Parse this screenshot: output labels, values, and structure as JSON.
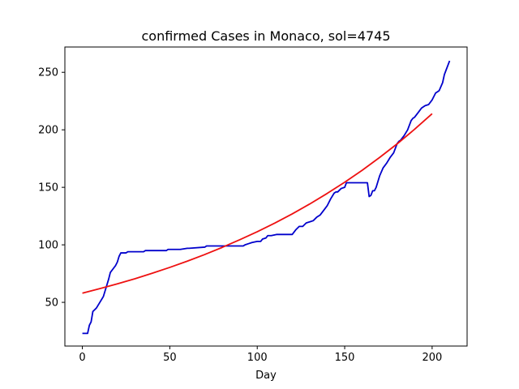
{
  "chart_data": {
    "type": "line",
    "title": "confirmed Cases in Monaco, sol=4745",
    "xlabel": "Day",
    "ylabel": "",
    "xlim": [
      -10,
      220
    ],
    "ylim": [
      12,
      272
    ],
    "xticks": [
      0,
      50,
      100,
      150,
      200
    ],
    "yticks": [
      50,
      100,
      150,
      200,
      250
    ],
    "grid": false,
    "series": [
      {
        "color": "#0000cc",
        "x": [
          0,
          3,
          4,
          5,
          6,
          8,
          10,
          12,
          13,
          14,
          15,
          16,
          18,
          19,
          20,
          21,
          22,
          25,
          26,
          35,
          36,
          48,
          49,
          55,
          56,
          60,
          61,
          70,
          71,
          80,
          92,
          93,
          95,
          97,
          100,
          102,
          103,
          105,
          106,
          108,
          111,
          112,
          116,
          120,
          122,
          124,
          126,
          128,
          130,
          132,
          134,
          136,
          138,
          140,
          142,
          144,
          145,
          146,
          148,
          150,
          151,
          152,
          153,
          155,
          157,
          160,
          163,
          164,
          165,
          166,
          167,
          168,
          169,
          170,
          172,
          174,
          176,
          177,
          178,
          180,
          181,
          182,
          184,
          186,
          188,
          189,
          190,
          192,
          194,
          196,
          198,
          200,
          202,
          203,
          204,
          206,
          207,
          208,
          210
        ],
        "y": [
          23,
          23,
          30,
          33,
          42,
          45,
          50,
          55,
          60,
          65,
          70,
          76,
          80,
          82,
          85,
          90,
          93,
          93,
          94,
          94,
          95,
          95,
          96,
          96,
          96,
          97,
          97,
          98,
          99,
          99,
          99,
          100,
          101,
          102,
          103,
          103,
          105,
          106,
          108,
          108,
          109,
          109,
          109,
          109,
          113,
          116,
          116,
          119,
          120,
          121,
          124,
          126,
          130,
          134,
          140,
          145,
          146,
          146,
          149,
          150,
          154,
          154,
          154,
          154,
          154,
          154,
          154,
          142,
          143,
          147,
          147,
          150,
          155,
          160,
          167,
          171,
          176,
          178,
          180,
          188,
          190,
          191,
          195,
          200,
          208,
          210,
          211,
          215,
          219,
          221,
          222,
          226,
          232,
          233,
          234,
          241,
          248,
          252,
          260
        ]
      },
      {
        "color": "#ee1111",
        "model": "exponential fit",
        "x": [
          0,
          10,
          20,
          30,
          40,
          50,
          60,
          70,
          80,
          90,
          100,
          110,
          120,
          130,
          140,
          150,
          160,
          170,
          180,
          190,
          200
        ],
        "y": [
          58,
          61.9,
          66.1,
          70.5,
          75.3,
          80.4,
          85.8,
          91.6,
          97.8,
          104.4,
          111.4,
          118.9,
          126.9,
          135.5,
          144.7,
          154.4,
          164.8,
          176,
          187.8,
          200.5,
          214
        ]
      }
    ]
  }
}
